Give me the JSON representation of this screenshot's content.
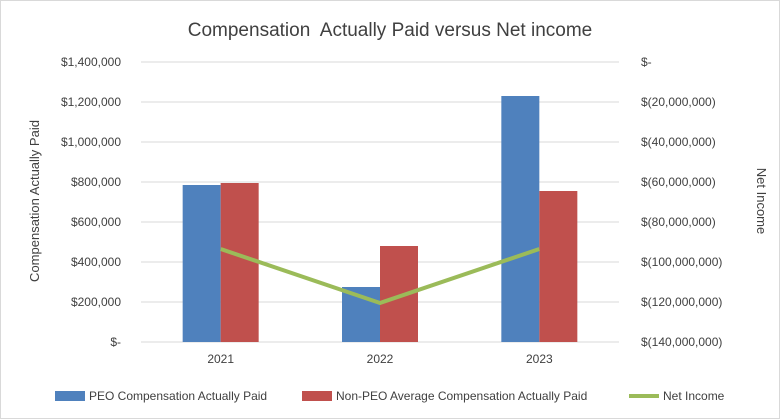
{
  "chart_data": {
    "type": "bar",
    "title": "Compensation  Actually Paid versus Net income",
    "categories": [
      "2021",
      "2022",
      "2023"
    ],
    "y_left": {
      "label": "Compensation Actually Paid",
      "range": [
        0,
        1400000
      ],
      "ticks": [
        "$-",
        "$200,000",
        "$400,000",
        "$600,000",
        "$800,000",
        "$1,000,000",
        "$1,200,000",
        "$1,400,000"
      ]
    },
    "y_right": {
      "label": "Net Income",
      "range": [
        -140000000,
        0
      ],
      "ticks": [
        "$(140,000,000)",
        "$(120,000,000)",
        "$(100,000,000)",
        "$(80,000,000)",
        "$(60,000,000)",
        "$(40,000,000)",
        "$(20,000,000)",
        "$-"
      ]
    },
    "series": [
      {
        "name": "PEO Compensation Actually Paid",
        "type": "bar",
        "axis": "left",
        "color": "#4f81bd",
        "values": [
          785000,
          275000,
          1230000
        ]
      },
      {
        "name": "Non-PEO Average Compensation Actually Paid",
        "type": "bar",
        "axis": "left",
        "color": "#c0504d",
        "values": [
          795000,
          480000,
          755000
        ]
      },
      {
        "name": "Net Income",
        "type": "line",
        "axis": "right",
        "color": "#9bbb59",
        "values": [
          -93500000,
          -120500000,
          -93500000
        ]
      }
    ],
    "grid": true,
    "legend_position": "bottom"
  }
}
